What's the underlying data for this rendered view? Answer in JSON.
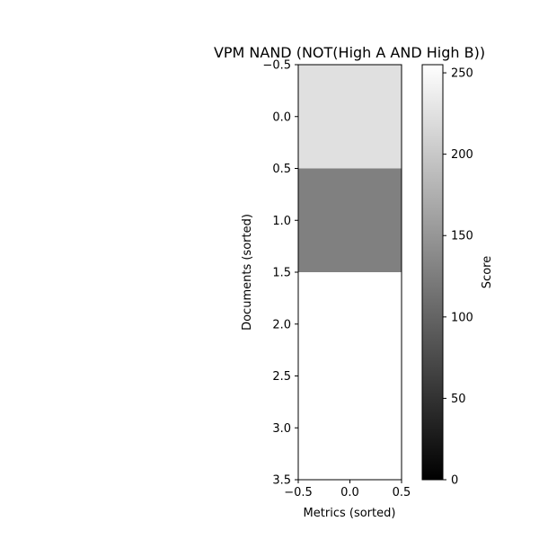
{
  "chart_data": {
    "type": "heatmap",
    "title": "VPM NAND (NOT(High A AND High B))",
    "xlabel": "Metrics (sorted)",
    "ylabel": "Documents (sorted)",
    "colorbar_label": "Score",
    "colormap": "gray",
    "xlim": [
      -0.5,
      0.5
    ],
    "ylim": [
      -0.5,
      3.5
    ],
    "y_inverted": true,
    "x_ticks": [
      "−0.5",
      "0.0",
      "0.5"
    ],
    "x_tick_values": [
      -0.5,
      0.0,
      0.5
    ],
    "y_ticks": [
      "−0.5",
      "0.0",
      "0.5",
      "1.0",
      "1.5",
      "2.0",
      "2.5",
      "3.0",
      "3.5"
    ],
    "y_tick_values": [
      -0.5,
      0.0,
      0.5,
      1.0,
      1.5,
      2.0,
      2.5,
      3.0,
      3.5
    ],
    "colorbar_range": [
      0,
      255
    ],
    "colorbar_ticks": [
      "0",
      "50",
      "100",
      "150",
      "200",
      "250"
    ],
    "colorbar_tick_values": [
      0,
      50,
      100,
      150,
      200,
      250
    ],
    "columns": 1,
    "values": [
      [
        224
      ],
      [
        128
      ],
      [
        255
      ],
      [
        255
      ]
    ]
  }
}
